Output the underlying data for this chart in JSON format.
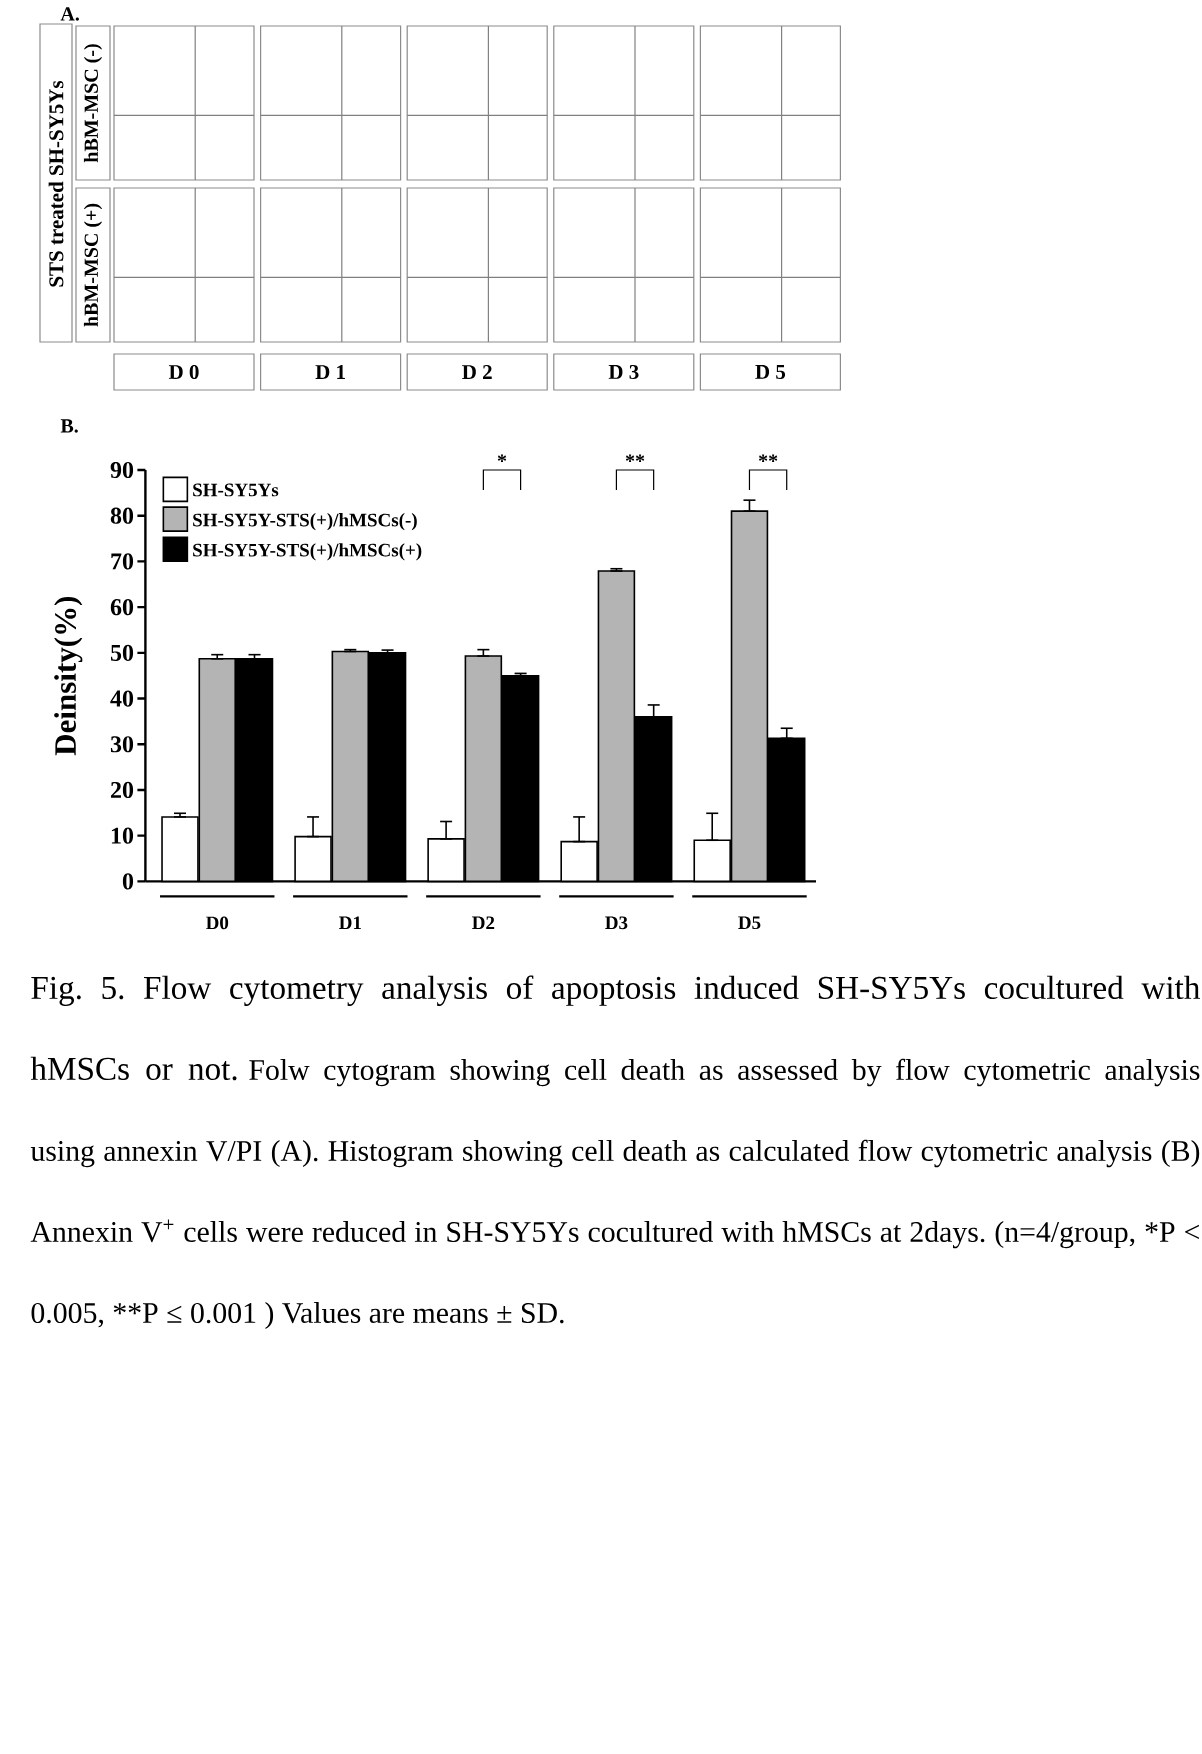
{
  "chart_data": [
    {
      "type": "other",
      "title": "A.",
      "ylabel": "STS treated SH-SY5Ys",
      "categories": [
        "D 0",
        "D 1",
        "D 2",
        "D 3",
        "D 5"
      ],
      "y_categories": [
        "hBM-MSC (-)",
        "hBM-MSC (+)"
      ]
    },
    {
      "type": "bar",
      "title": "B.",
      "ylabel": "Deinsity(%)",
      "categories": [
        "D0",
        "D1",
        "D2",
        "D3",
        "D5"
      ],
      "series": [
        {
          "name": "SH-SY5Ys",
          "color": "#ffffff",
          "values": [
            14.1,
            9.8,
            9.3,
            8.7,
            9.0
          ],
          "errors": [
            [
              14.1,
              14.9
            ],
            [
              9.8,
              14.1
            ],
            [
              9.3,
              13.1
            ],
            [
              8.7,
              14.1
            ],
            [
              9.0,
              14.9
            ]
          ]
        },
        {
          "name": "SH-SY5Y-STS(+)/hMSCs(-)",
          "color": "#b4b4b4",
          "values": [
            48.7,
            50.3,
            49.3,
            67.9,
            81.0
          ],
          "errors": [
            [
              48.7,
              49.6
            ],
            [
              50.3,
              50.7
            ],
            [
              49.3,
              50.7
            ],
            [
              67.9,
              68.4
            ],
            [
              81.0,
              83.4
            ]
          ]
        },
        {
          "name": "SH-SY5Y-STS(+)/hMSCs(+)",
          "color": "#000000",
          "values": [
            48.7,
            50.0,
            45.0,
            36.0,
            31.3
          ],
          "errors": [
            [
              48.7,
              49.6
            ],
            [
              50.0,
              50.6
            ],
            [
              45.0,
              45.5
            ],
            [
              36.0,
              38.6
            ],
            [
              31.3,
              33.5
            ]
          ]
        }
      ],
      "ylim": [
        0,
        90
      ],
      "yticks": [
        0,
        10,
        20,
        30,
        40,
        50,
        60,
        70,
        80,
        90
      ],
      "legend": "top left",
      "annotations": [
        "*",
        "**",
        "**",
        "Fig. 5. Flow cytometry analysis of apoptosis induced SH-SY5Ys cocultured with hMSCs or not.",
        "Folw cytogram showing cell death as assessed by flow cytometric analysis using annexin V/PI (A). Histogram showing cell death as calculated flow cytometric analysis (B) Annexin V$^{+}$ cells were reduced in SH-SY5Ys cocultured with hMSCs at 2days. (n=4/group, *P < 0.005, **P ≤ 0.001 ) Values are means ± SD."
      ]
    }
  ]
}
